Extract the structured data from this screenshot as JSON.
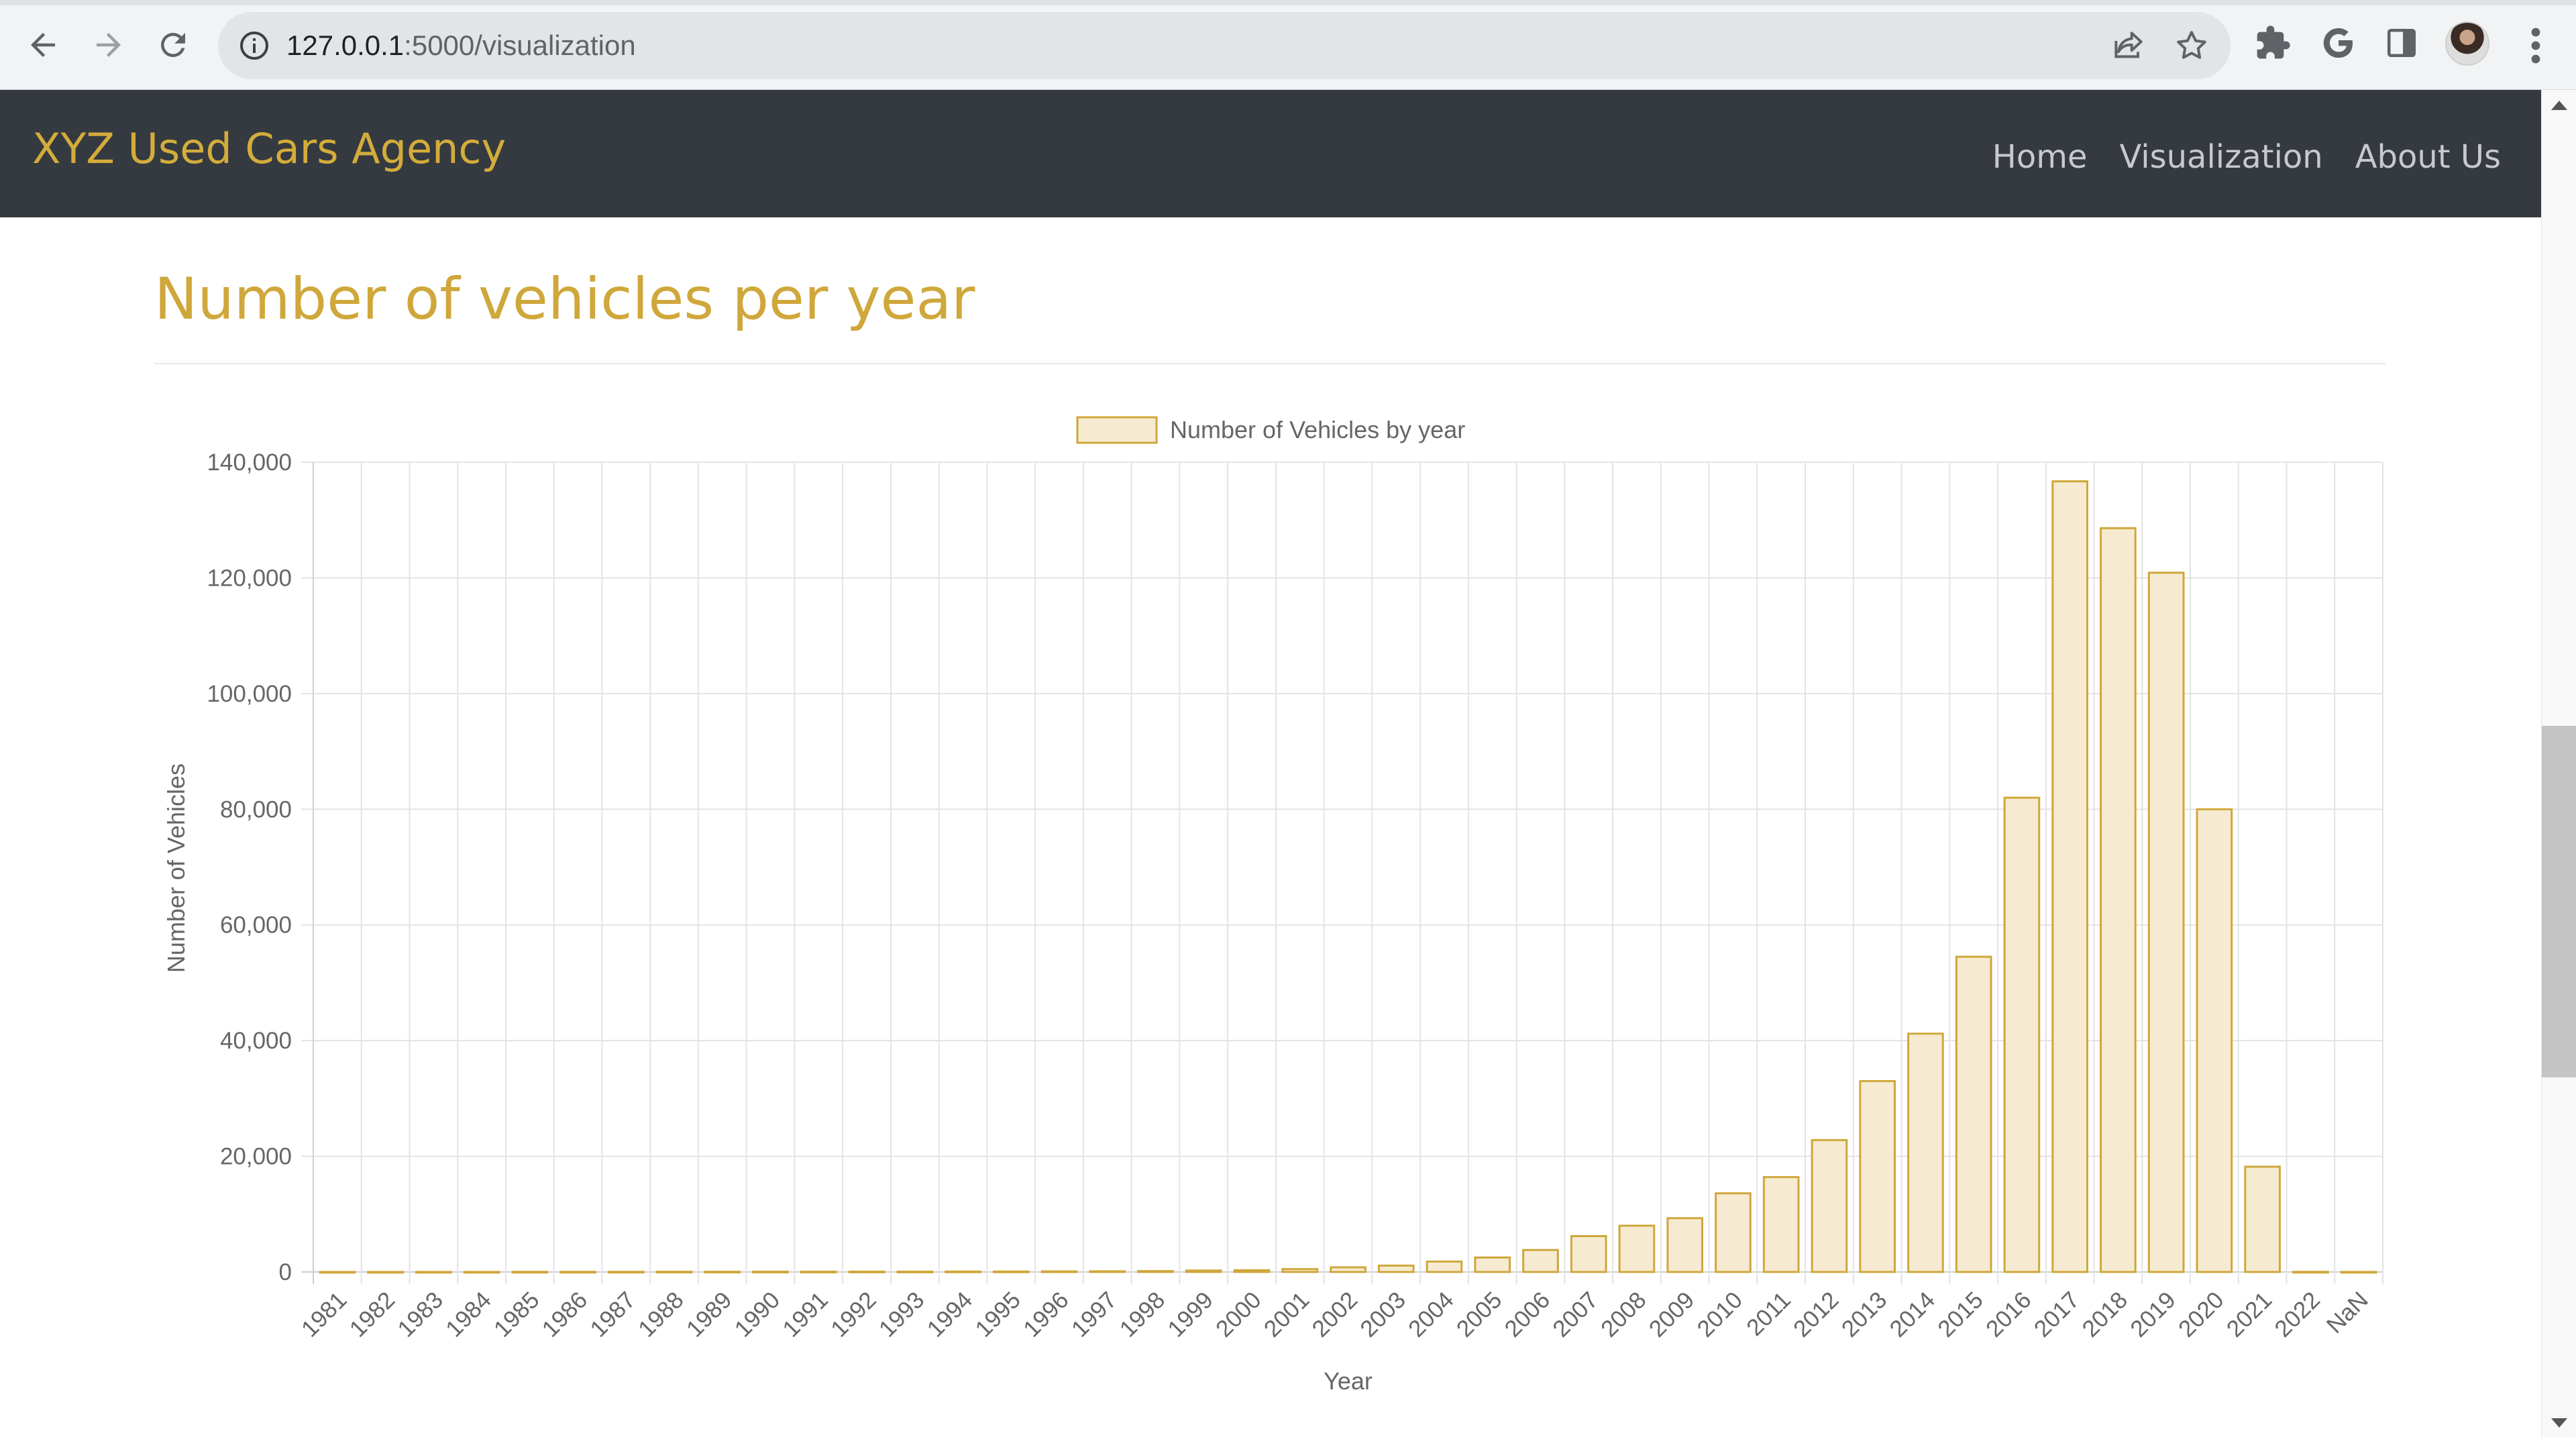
{
  "browser": {
    "url_host": "127.0.0.1",
    "url_path": ":5000/visualization",
    "icons": [
      "back-arrow-icon",
      "forward-arrow-icon",
      "reload-icon",
      "site-info-icon",
      "share-icon",
      "bookmark-star-icon",
      "extensions-puzzle-icon",
      "google-g-icon",
      "side-panel-icon",
      "profile-avatar",
      "kebab-menu-icon"
    ]
  },
  "navbar": {
    "brand": "XYZ Used Cars Agency",
    "links": [
      {
        "label": "Home"
      },
      {
        "label": "Visualization"
      },
      {
        "label": "About Us"
      }
    ]
  },
  "page": {
    "heading": "Number of vehicles per year"
  },
  "colors": {
    "navbar_bg": "#343a40",
    "brand": "#d4ac3a",
    "heading": "#cfa73b",
    "bar_fill": "#f6ebd0",
    "bar_border": "#cfa73b"
  },
  "chart_data": {
    "type": "bar",
    "xlabel": "Year",
    "ylabel": "Number of Vehicles",
    "legend": {
      "label": "Number of Vehicles by year",
      "position": "top-center"
    },
    "grid": true,
    "ylim": [
      0,
      140000
    ],
    "yticks": [
      "0",
      "20,000",
      "40,000",
      "60,000",
      "80,000",
      "100,000",
      "120,000",
      "140,000"
    ],
    "categories": [
      "1981",
      "1982",
      "1983",
      "1984",
      "1985",
      "1986",
      "1987",
      "1988",
      "1989",
      "1990",
      "1991",
      "1992",
      "1993",
      "1994",
      "1995",
      "1996",
      "1997",
      "1998",
      "1999",
      "2000",
      "2001",
      "2002",
      "2003",
      "2004",
      "2005",
      "2006",
      "2007",
      "2008",
      "2009",
      "2010",
      "2011",
      "2012",
      "2013",
      "2014",
      "2015",
      "2016",
      "2017",
      "2018",
      "2019",
      "2020",
      "2021",
      "2022",
      "NaN"
    ],
    "values": [
      5,
      5,
      10,
      10,
      20,
      20,
      30,
      40,
      40,
      50,
      50,
      60,
      60,
      80,
      80,
      100,
      120,
      150,
      250,
      300,
      500,
      800,
      1100,
      1800,
      2500,
      3800,
      6200,
      8000,
      9300,
      13600,
      16400,
      22800,
      33000,
      41200,
      54500,
      82000,
      136700,
      128600,
      120900,
      80000,
      18200,
      20,
      10
    ]
  }
}
